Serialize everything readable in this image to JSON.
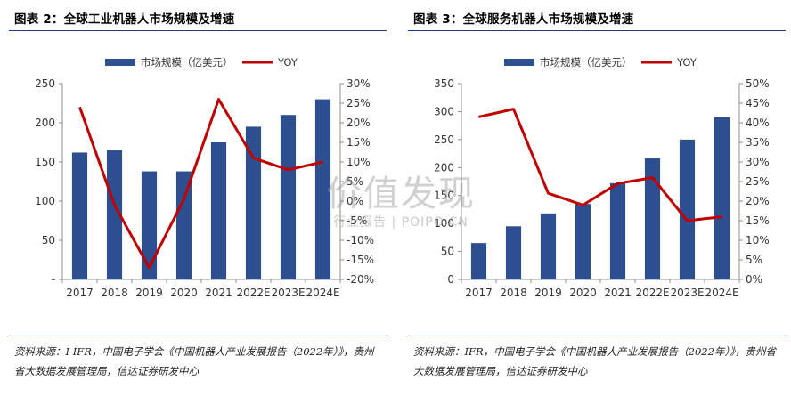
{
  "colors": {
    "bar": "#2e4f8f",
    "line": "#c00000",
    "axis": "#8c8c8c",
    "rule": "#1f3f7a"
  },
  "watermark": {
    "main": "价值发现",
    "sub": "行业报告 | POIPO.CN"
  },
  "chart_data": [
    {
      "type": "bar+line",
      "title": "图表 2：全球工业机器人市场规模及增速",
      "legend": {
        "bar": "市场规模（亿美元）",
        "line": "YOY",
        "placement": "top"
      },
      "categories": [
        "2017",
        "2018",
        "2019",
        "2020",
        "2021",
        "2022E",
        "2023E",
        "2024E"
      ],
      "series": [
        {
          "name": "市场规模（亿美元）",
          "kind": "bar",
          "axis": "left",
          "values": [
            162,
            165,
            138,
            138,
            175,
            195,
            210,
            230
          ]
        },
        {
          "name": "YOY",
          "kind": "line",
          "axis": "right",
          "values": [
            24,
            -1,
            -17,
            0.5,
            26,
            11,
            8,
            10
          ]
        }
      ],
      "y_left": {
        "ticks": [
          0,
          50,
          100,
          150,
          200,
          250
        ],
        "tick_labels": [
          "-",
          "50",
          "100",
          "150",
          "200",
          "250"
        ],
        "ylim": [
          0,
          250
        ]
      },
      "y_right": {
        "ticks": [
          -20,
          -15,
          -10,
          -5,
          0,
          5,
          10,
          15,
          20,
          25,
          30
        ],
        "tick_labels": [
          "-20%",
          "-15%",
          "-10%",
          "-5%",
          "0%",
          "5%",
          "10%",
          "15%",
          "20%",
          "25%",
          "30%"
        ],
        "ylim": [
          -20,
          30
        ]
      },
      "grid": false,
      "source": "资料来源：I IFR，中国电子学会《中国机器人产业发展报告（2022年）》，贵州省大数据发展管理局，信达证券研发中心"
    },
    {
      "type": "bar+line",
      "title": "图表 3：全球服务机器人市场规模及增速",
      "legend": {
        "bar": "市场规模（亿美元）",
        "line": "YOY",
        "placement": "top"
      },
      "categories": [
        "2017",
        "2018",
        "2019",
        "2020",
        "2021",
        "2022E",
        "2023E",
        "2024E"
      ],
      "series": [
        {
          "name": "市场规模（亿美元）",
          "kind": "bar",
          "axis": "left",
          "values": [
            65,
            95,
            118,
            135,
            172,
            217,
            250,
            290
          ]
        },
        {
          "name": "YOY",
          "kind": "line",
          "axis": "right",
          "values": [
            41.5,
            43.5,
            22,
            19,
            24.5,
            26,
            15,
            16
          ]
        }
      ],
      "y_left": {
        "ticks": [
          0,
          50,
          100,
          150,
          200,
          250,
          300,
          350
        ],
        "tick_labels": [
          "0",
          "50",
          "100",
          "150",
          "200",
          "250",
          "300",
          "350"
        ],
        "ylim": [
          0,
          350
        ]
      },
      "y_right": {
        "ticks": [
          0,
          5,
          10,
          15,
          20,
          25,
          30,
          35,
          40,
          45,
          50
        ],
        "tick_labels": [
          "0%",
          "5%",
          "10%",
          "15%",
          "20%",
          "25%",
          "30%",
          "35%",
          "40%",
          "45%",
          "50%"
        ],
        "ylim": [
          0,
          50
        ]
      },
      "grid": false,
      "source": "资料来源：IFR，中国电子学会《中国机器人产业发展报告（2022年）》，贵州省大数据发展管理局，信达证券研发中心"
    }
  ]
}
